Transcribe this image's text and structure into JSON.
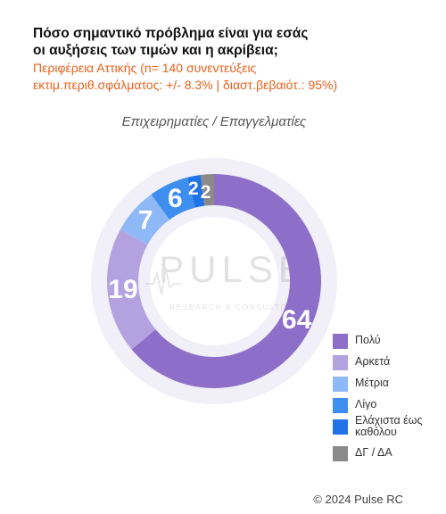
{
  "title_line1": "Πόσο σημαντικό πρόβλημα είναι για εσάς",
  "title_line2": "οι αυξήσεις των τιμών και η ακρίβεια;",
  "subtitle_line1": "Περιφέρεια Αττικής   (n= 140 συνεντεύξεις",
  "subtitle_line2": "εκτιμ.περιθ.σφάλματος: +/- 8.3% | διαστ.βεβαιότ.: 95%)",
  "watermark": {
    "main": "PULSE",
    "sub": "RESEARCH & CONSULTING"
  },
  "copyright": "© 2024 Pulse RC",
  "colors": {
    "title": "#111111",
    "subtitle": "#e8601c",
    "halo": "#f1eff8"
  },
  "chart_data": {
    "type": "pie",
    "variant": "donut",
    "title": "Επιχειρηματίες / Επαγγελματίες",
    "start": "top, clockwise from 12 o'clock",
    "slices": [
      {
        "label": "Πολύ",
        "value": 64,
        "color": "#8d6fc9"
      },
      {
        "label": "Αρκετά",
        "value": 19,
        "color": "#b4a2e0"
      },
      {
        "label": "Μέτρια",
        "value": 7,
        "color": "#8fb8f7"
      },
      {
        "label": "Λίγο",
        "value": 6,
        "color": "#3e8ef0"
      },
      {
        "label": "Ελάχιστα έως καθόλου",
        "value": 2,
        "color": "#2072e8"
      },
      {
        "label": "ΔΓ / ΔΑ",
        "value": 2,
        "color": "#8a8a8a"
      }
    ],
    "legend_position": "bottom-right"
  }
}
